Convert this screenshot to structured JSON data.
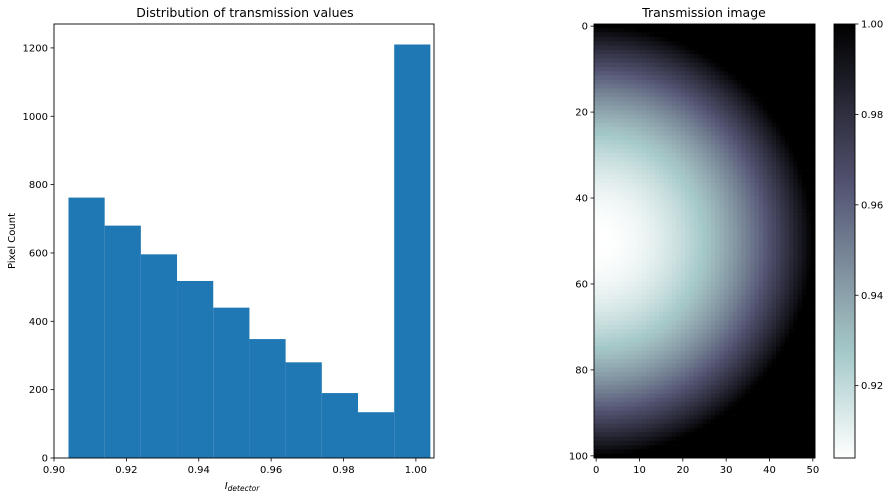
{
  "chart_data": [
    {
      "type": "bar",
      "title": "Distribution of transmission values",
      "xlabel_main": "I",
      "xlabel_sub": "detector",
      "ylabel": "Pixel Count",
      "xlim": [
        0.9,
        1.005
      ],
      "ylim": [
        0,
        1270
      ],
      "xticks": [
        0.9,
        0.92,
        0.94,
        0.96,
        0.98,
        1.0
      ],
      "xtick_labels": [
        "0.90",
        "0.92",
        "0.94",
        "0.96",
        "0.98",
        "1.00"
      ],
      "yticks": [
        0,
        200,
        400,
        600,
        800,
        1000,
        1200
      ],
      "ytick_labels": [
        "0",
        "200",
        "400",
        "600",
        "800",
        "1000",
        "1200"
      ],
      "bins": [
        {
          "x0": 0.904,
          "x1": 0.914,
          "count": 762
        },
        {
          "x0": 0.914,
          "x1": 0.924,
          "count": 680
        },
        {
          "x0": 0.924,
          "x1": 0.934,
          "count": 596
        },
        {
          "x0": 0.934,
          "x1": 0.944,
          "count": 518
        },
        {
          "x0": 0.944,
          "x1": 0.954,
          "count": 440
        },
        {
          "x0": 0.954,
          "x1": 0.964,
          "count": 348
        },
        {
          "x0": 0.964,
          "x1": 0.974,
          "count": 280
        },
        {
          "x0": 0.974,
          "x1": 0.984,
          "count": 190
        },
        {
          "x0": 0.984,
          "x1": 0.994,
          "count": 134
        },
        {
          "x0": 0.994,
          "x1": 1.004,
          "count": 1210
        }
      ],
      "bar_color": "#1f77b4",
      "grid": false
    },
    {
      "type": "heatmap",
      "title": "Transmission image",
      "colormap": "bone_r",
      "columns": 51,
      "rows": 101,
      "xlim": [
        -0.5,
        50.5
      ],
      "ylim": [
        100.5,
        -0.5
      ],
      "xticks": [
        0,
        10,
        20,
        30,
        40,
        50
      ],
      "xtick_labels": [
        "0",
        "10",
        "20",
        "30",
        "40",
        "50"
      ],
      "yticks": [
        0,
        20,
        40,
        60,
        80,
        100
      ],
      "ytick_labels": [
        "0",
        "20",
        "40",
        "60",
        "80",
        "100"
      ],
      "disk_center": [
        0,
        50
      ],
      "disk_radius": 50,
      "value_min": 0.904,
      "value_outside": 1.0,
      "colorbar_range": [
        0.904,
        1.0
      ],
      "colorbar_ticks": [
        0.92,
        0.94,
        0.96,
        0.98,
        1.0
      ],
      "colorbar_tick_labels": [
        "0.92",
        "0.94",
        "0.96",
        "0.98",
        "1.00"
      ]
    }
  ]
}
